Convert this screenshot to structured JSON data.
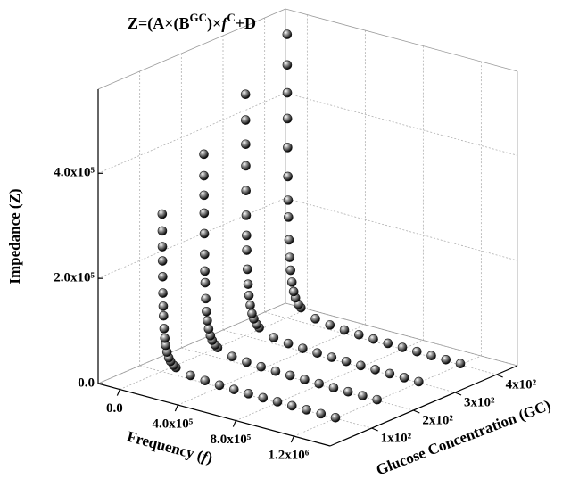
{
  "chart_data": {
    "type": "scatter3d",
    "title": [
      "Z=(A×(B",
      "GC",
      ")×",
      "f",
      "C",
      "+D"
    ],
    "xlabel": [
      "Frequency (",
      "f",
      ")"
    ],
    "ylabel": "Glucose Concentration (GC)",
    "zlabel": "Impedance (Z)",
    "xlim": [
      -150000,
      1450000
    ],
    "xticks": [
      {
        "value": 0,
        "label": "0.0"
      },
      {
        "value": 400000,
        "label": "4.0x10⁵"
      },
      {
        "value": 800000,
        "label": "8.0x10⁵"
      },
      {
        "value": 1200000,
        "label": "1.2x10⁶"
      }
    ],
    "gclim": [
      0,
      450
    ],
    "gcticks": [
      {
        "value": 100,
        "label": "1x10²"
      },
      {
        "value": 200,
        "label": "2x10²"
      },
      {
        "value": 300,
        "label": "3x10²"
      },
      {
        "value": 400,
        "label": "4x10²"
      }
    ],
    "zlim": [
      0,
      560000
    ],
    "zticks": [
      {
        "value": 0,
        "label": "0.0"
      },
      {
        "value": 200000,
        "label": "2.0x10⁵"
      },
      {
        "value": 400000,
        "label": "4.0x10⁵"
      }
    ],
    "grid": true,
    "x": [
      5000,
      5600,
      6300,
      7100,
      8300,
      10000,
      12000,
      14000,
      18000,
      23000,
      29000,
      38000,
      50000,
      62500,
      83000,
      100000,
      200000,
      300000,
      400000,
      500000,
      600000,
      700000,
      800000,
      900000,
      1000000,
      1100000,
      1200000
    ],
    "series": [
      {
        "gc": 100,
        "color": "#1a1a1a",
        "values": [
          300000,
          268000,
          238000,
          211000,
          181000,
          150000,
          125000,
          107000,
          83000,
          65000,
          52000,
          40000,
          30000,
          24000,
          18000,
          15000,
          7500,
          5000,
          3800,
          3000,
          2500,
          2100,
          1900,
          1700,
          1500,
          1400,
          1300
        ]
      },
      {
        "gc": 200,
        "color": "#1a1a1a",
        "values": [
          380000,
          339000,
          302000,
          268000,
          229000,
          190000,
          158000,
          136000,
          106000,
          82000,
          65000,
          50000,
          38000,
          30000,
          23000,
          19000,
          9500,
          6300,
          4800,
          3800,
          3200,
          2700,
          2400,
          2100,
          1900,
          1700,
          1600
        ]
      },
      {
        "gc": 300,
        "color": "#1a1a1a",
        "values": [
          460000,
          411000,
          365000,
          324000,
          277000,
          230000,
          192000,
          164000,
          128000,
          100000,
          79000,
          61000,
          46000,
          37000,
          28000,
          23000,
          11500,
          7700,
          5800,
          4600,
          3800,
          3300,
          2900,
          2600,
          2300,
          2100,
          1900
        ]
      },
      {
        "gc": 400,
        "color": "#1a1a1a",
        "values": [
          540000,
          482000,
          429000,
          380000,
          325000,
          270000,
          225000,
          193000,
          150000,
          117000,
          93000,
          71000,
          54000,
          43000,
          32000,
          27000,
          13500,
          9000,
          6800,
          5400,
          4500,
          3800,
          3400,
          3000,
          2700,
          2400,
          2300
        ]
      }
    ]
  }
}
